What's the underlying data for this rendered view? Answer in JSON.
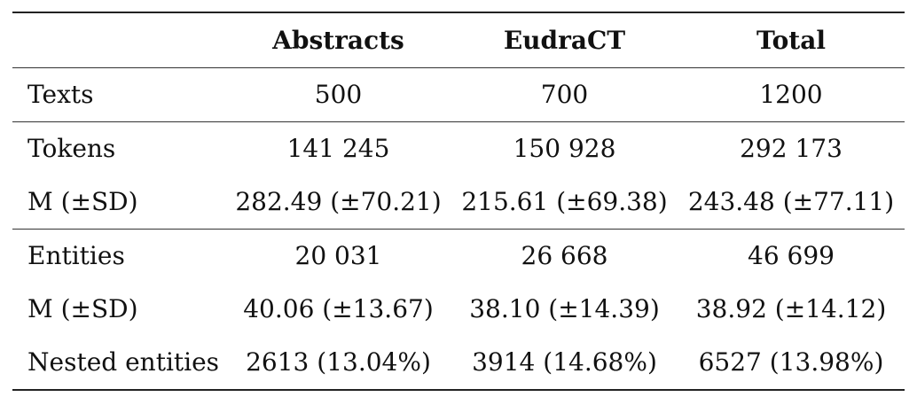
{
  "table": {
    "headers": [
      "",
      "Abstracts",
      "EudraCT",
      "Total"
    ],
    "rows": [
      {
        "label": "Texts",
        "abstracts": "500",
        "eudract": "700",
        "total": "1200"
      },
      {
        "label": "Tokens",
        "abstracts": "141 245",
        "eudract": "150 928",
        "total": "292 173"
      },
      {
        "label": "M (±SD)",
        "abstracts": "282.49 (±70.21)",
        "eudract": "215.61 (±69.38)",
        "total": "243.48 (±77.11)"
      },
      {
        "label": "Entities",
        "abstracts": "20 031",
        "eudract": "26 668",
        "total": "46 699"
      },
      {
        "label": "M (±SD)",
        "abstracts": "40.06 (±13.67)",
        "eudract": "38.10 (±14.39)",
        "total": "38.92 (±14.12)"
      },
      {
        "label": "Nested entities",
        "abstracts": "2613 (13.04%)",
        "eudract": "3914 (14.68%)",
        "total": "6527 (13.98%)"
      }
    ]
  }
}
